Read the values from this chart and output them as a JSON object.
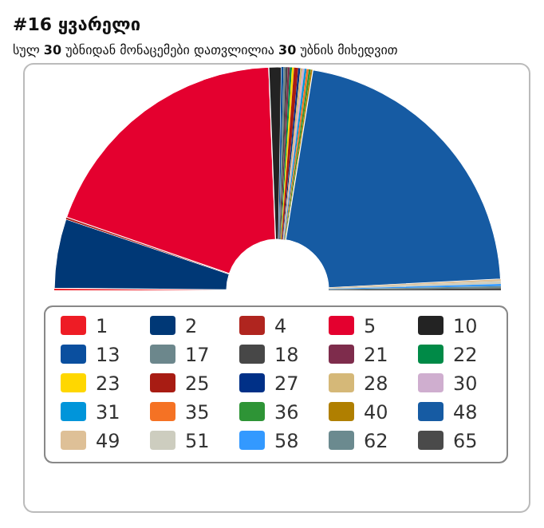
{
  "chart_data": {
    "type": "donut",
    "title": "#16 ყვარელი",
    "subtitle": "სულ 30 უბნიდან მონაცემები დათვლილია 30 უბნის მიხედვით",
    "categories": [
      "1",
      "2",
      "4",
      "5",
      "10",
      "13",
      "17",
      "18",
      "21",
      "22",
      "23",
      "25",
      "27",
      "28",
      "30",
      "31",
      "35",
      "36",
      "40",
      "48",
      "49",
      "51",
      "58",
      "62",
      "65"
    ],
    "values": [
      0.3,
      10,
      0.3,
      38,
      1.8,
      0.3,
      0.3,
      0.3,
      0.3,
      0.3,
      0.3,
      0.6,
      0.3,
      0.3,
      0.3,
      0.3,
      0.3,
      0.3,
      0.3,
      43.2,
      0.3,
      0.4,
      0.3,
      0.3,
      0.3
    ],
    "colors": [
      "#ee1c25",
      "#003876",
      "#b0251f",
      "#e4002f",
      "#232323",
      "#0a4f9f",
      "#6c878c",
      "#474747",
      "#7e2c4c",
      "#008a47",
      "#ffd700",
      "#a81c13",
      "#003087",
      "#d5b878",
      "#cfaecf",
      "#0095da",
      "#f57224",
      "#2e9436",
      "#b07f00",
      "#165ba3",
      "#dec097",
      "#cdcdbf",
      "#3399ff",
      "#6b8a8f",
      "#4a4a4a"
    ],
    "legend": "bottom"
  }
}
